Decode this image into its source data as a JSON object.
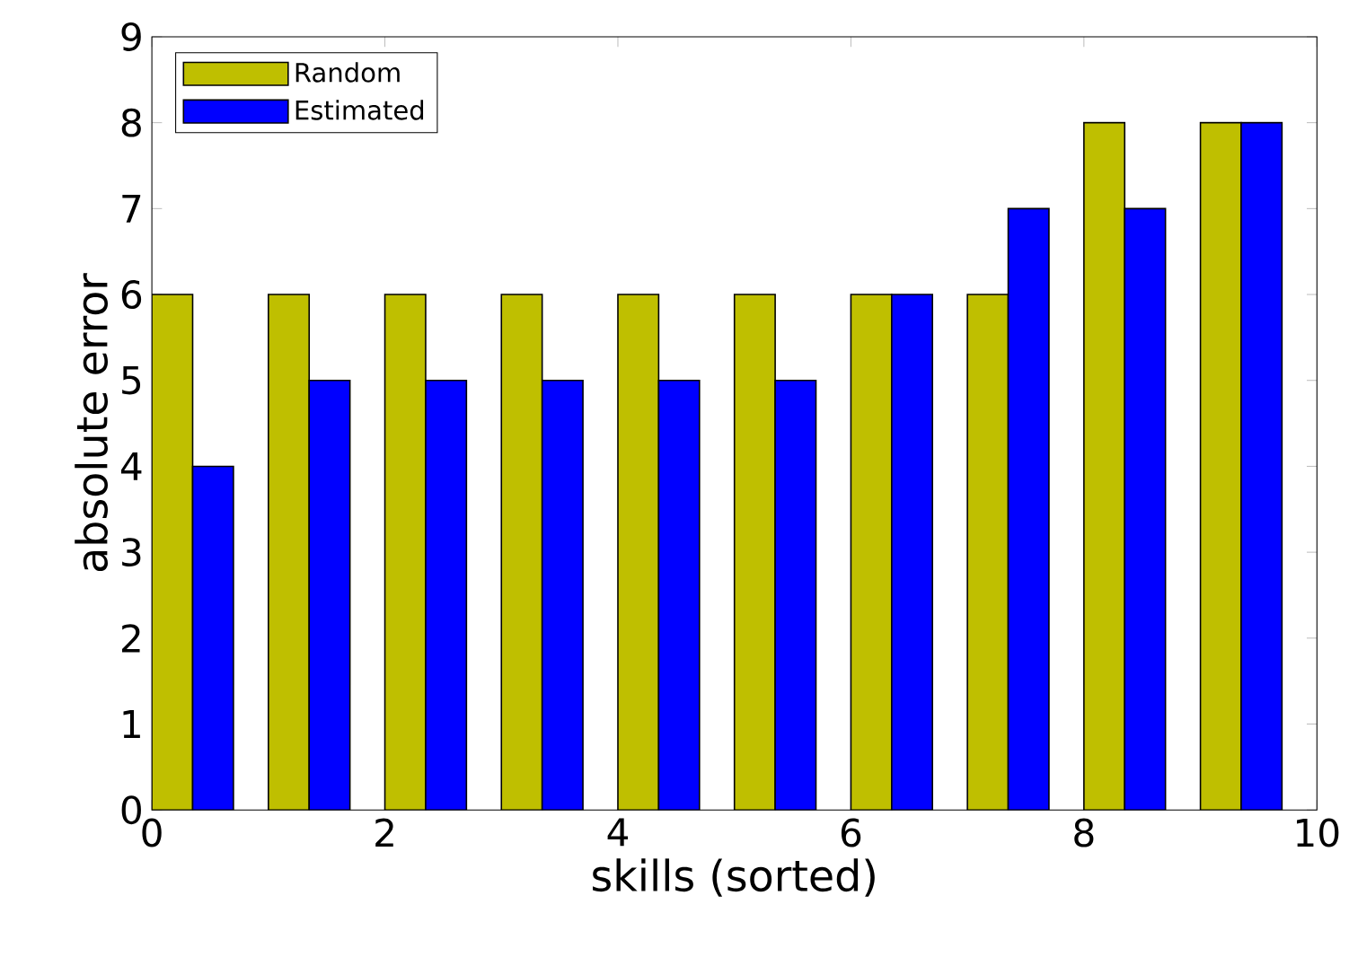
{
  "chart_data": {
    "type": "bar",
    "xlabel": "skills (sorted)",
    "ylabel": "absolute error",
    "x": [
      0.35,
      1.35,
      2.35,
      3.35,
      4.35,
      5.35,
      6.35,
      7.35,
      8.35,
      9.35
    ],
    "series": [
      {
        "name": "Random",
        "color": "#bfbf00",
        "values": [
          6,
          6,
          6,
          6,
          6,
          6,
          6,
          6,
          8,
          8
        ]
      },
      {
        "name": "Estimated",
        "color": "#0000ff",
        "values": [
          4,
          5,
          5,
          5,
          5,
          5,
          6,
          7,
          7,
          8
        ]
      }
    ],
    "xlim": [
      0,
      10
    ],
    "xticks": [
      0,
      2,
      4,
      6,
      8,
      10
    ],
    "ylim": [
      0,
      9
    ],
    "yticks": [
      0,
      1,
      2,
      3,
      4,
      5,
      6,
      7,
      8,
      9
    ],
    "grid": false,
    "legend": "top left"
  }
}
